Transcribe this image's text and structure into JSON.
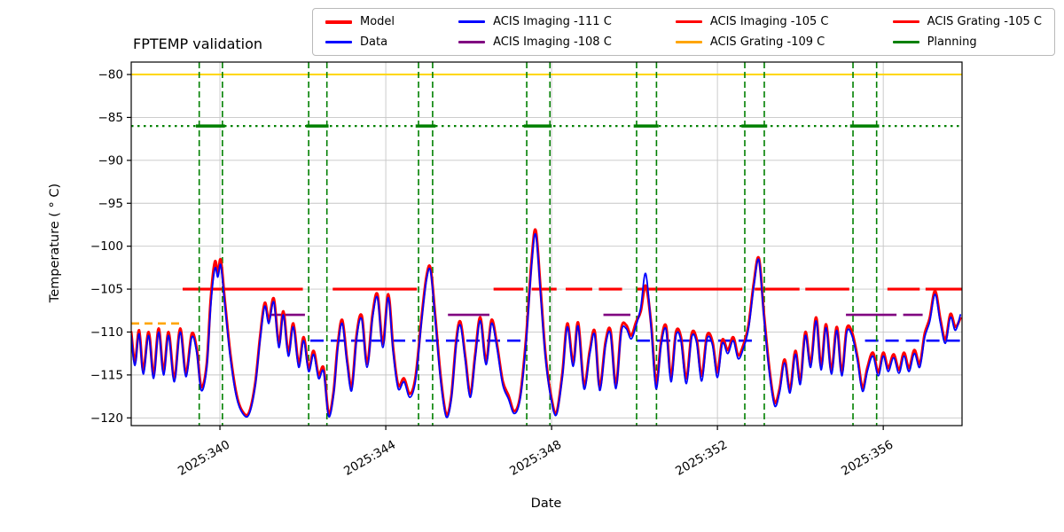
{
  "title": "FPTEMP validation",
  "legend": {
    "items": [
      {
        "label": "Model",
        "color": "#ff0000",
        "line_width": 4
      },
      {
        "label": "Data",
        "color": "#0000ff",
        "line_width": 2.5
      },
      {
        "label": "ACIS Imaging -111 C",
        "color": "#0000ff",
        "line_width": 3
      },
      {
        "label": "ACIS Imaging -108 C",
        "color": "#800080",
        "line_width": 3
      },
      {
        "label": "ACIS Imaging -105 C",
        "color": "#ff0000",
        "line_width": 3
      },
      {
        "label": "ACIS Grating -109 C",
        "color": "#ffa500",
        "line_width": 3
      },
      {
        "label": "ACIS Grating -105 C",
        "color": "#ff0000",
        "line_width": 3
      },
      {
        "label": "Planning",
        "color": "#008000",
        "line_width": 3
      }
    ]
  },
  "chart_data": {
    "type": "line",
    "title": "FPTEMP validation",
    "xlabel": "Date",
    "ylabel": "Temperature ( ° C)",
    "grid": true,
    "legend_position": "top",
    "xlim": [
      337.86,
      357.9
    ],
    "ylim": [
      -120.9,
      -78.55
    ],
    "x_ticks": {
      "values": [
        340,
        344,
        348,
        352,
        356
      ],
      "labels": [
        "2025:340",
        "2025:344",
        "2025:348",
        "2025:352",
        "2025:356"
      ]
    },
    "y_ticks": {
      "values": [
        -80,
        -85,
        -90,
        -95,
        -100,
        -105,
        -110,
        -115,
        -120
      ],
      "labels": [
        "−80",
        "−85",
        "−90",
        "−95",
        "−100",
        "−105",
        "−110",
        "−115",
        "−120"
      ]
    },
    "x": [
      337.86,
      337.95,
      338.05,
      338.15,
      338.28,
      338.4,
      338.52,
      338.64,
      338.76,
      338.9,
      339.04,
      339.18,
      339.32,
      339.44,
      339.55,
      339.68,
      339.78,
      339.88,
      339.95,
      340.02,
      340.12,
      340.25,
      340.4,
      340.55,
      340.7,
      340.85,
      340.97,
      341.08,
      341.18,
      341.3,
      341.42,
      341.53,
      341.65,
      341.77,
      341.9,
      342.02,
      342.14,
      342.26,
      342.38,
      342.5,
      342.62,
      342.74,
      342.84,
      342.95,
      343.07,
      343.18,
      343.3,
      343.42,
      343.55,
      343.68,
      343.8,
      343.93,
      344.06,
      344.18,
      344.3,
      344.44,
      344.58,
      344.72,
      344.86,
      344.98,
      345.08,
      345.2,
      345.33,
      345.46,
      345.58,
      345.7,
      345.8,
      345.92,
      346.04,
      346.16,
      346.28,
      346.42,
      346.55,
      346.68,
      346.82,
      346.96,
      347.1,
      347.24,
      347.38,
      347.52,
      347.62,
      347.74,
      347.86,
      348.0,
      348.12,
      348.26,
      348.38,
      348.52,
      348.64,
      348.78,
      348.92,
      349.04,
      349.16,
      349.3,
      349.42,
      349.55,
      349.68,
      349.8,
      349.92,
      350.04,
      350.15,
      350.27,
      350.4,
      350.52,
      350.64,
      350.76,
      350.88,
      351.0,
      351.12,
      351.25,
      351.38,
      351.5,
      351.62,
      351.75,
      351.88,
      352.0,
      352.12,
      352.25,
      352.38,
      352.5,
      352.62,
      352.75,
      352.88,
      353.0,
      353.12,
      353.25,
      353.38,
      353.5,
      353.62,
      353.75,
      353.88,
      354.0,
      354.12,
      354.25,
      354.38,
      354.5,
      354.62,
      354.75,
      354.88,
      355.0,
      355.12,
      355.25,
      355.38,
      355.5,
      355.62,
      355.75,
      355.88,
      356.0,
      356.12,
      356.25,
      356.38,
      356.5,
      356.62,
      356.75,
      356.88,
      357.0,
      357.12,
      357.25,
      357.38,
      357.5,
      357.62,
      357.74,
      357.86
    ],
    "series": [
      {
        "name": "Model",
        "color": "#ff0000",
        "line_width": 3,
        "values": [
          -110.0,
          -113.5,
          -109.8,
          -114.5,
          -110.0,
          -115.0,
          -109.6,
          -114.6,
          -110.0,
          -115.4,
          -109.6,
          -114.8,
          -110.2,
          -112.0,
          -116.4,
          -113.8,
          -106.0,
          -101.8,
          -103.2,
          -101.6,
          -106.5,
          -112.5,
          -117.3,
          -119.3,
          -119.4,
          -116.0,
          -110.5,
          -106.6,
          -108.6,
          -106.1,
          -111.4,
          -107.6,
          -112.4,
          -109.0,
          -113.7,
          -110.6,
          -114.2,
          -112.2,
          -115.0,
          -114.2,
          -119.5,
          -117.0,
          -111.6,
          -108.6,
          -113.4,
          -116.4,
          -110.2,
          -108.1,
          -113.7,
          -108.0,
          -105.6,
          -111.4,
          -105.6,
          -112.0,
          -116.2,
          -115.4,
          -117.2,
          -115.2,
          -108.5,
          -103.6,
          -102.6,
          -108.5,
          -115.5,
          -119.6,
          -117.5,
          -111.0,
          -108.8,
          -113.0,
          -117.2,
          -112.5,
          -108.3,
          -113.4,
          -108.6,
          -111.4,
          -115.7,
          -117.4,
          -119.2,
          -117.5,
          -111.0,
          -101.5,
          -98.2,
          -105.5,
          -113.0,
          -117.8,
          -119.4,
          -114.8,
          -109.0,
          -113.6,
          -108.9,
          -116.2,
          -112.2,
          -109.9,
          -116.4,
          -111.2,
          -109.8,
          -116.2,
          -109.6,
          -109.2,
          -110.4,
          -108.8,
          -107.6,
          -104.6,
          -109.0,
          -116.0,
          -111.2,
          -109.3,
          -115.2,
          -110.0,
          -110.6,
          -115.4,
          -110.2,
          -110.9,
          -115.1,
          -110.4,
          -111.1,
          -114.7,
          -110.9,
          -112.1,
          -110.6,
          -112.7,
          -111.6,
          -109.2,
          -104.2,
          -101.4,
          -107.8,
          -114.2,
          -118.2,
          -116.6,
          -113.2,
          -116.7,
          -112.2,
          -115.7,
          -110.0,
          -113.7,
          -108.3,
          -114.0,
          -109.1,
          -114.5,
          -109.4,
          -114.7,
          -109.6,
          -110.1,
          -113.0,
          -116.5,
          -114.1,
          -112.4,
          -114.7,
          -112.4,
          -114.2,
          -112.6,
          -114.4,
          -112.4,
          -114.2,
          -112.1,
          -113.7,
          -110.2,
          -108.4,
          -105.2,
          -108.6,
          -110.9,
          -107.9,
          -109.4,
          -108.4
        ]
      },
      {
        "name": "Data",
        "color": "#0000ff",
        "line_width": 1.8,
        "values": [
          -110.4,
          -113.9,
          -110.2,
          -114.9,
          -110.4,
          -115.4,
          -110.0,
          -115.0,
          -110.4,
          -115.8,
          -110.0,
          -115.2,
          -110.6,
          -112.4,
          -116.8,
          -114.2,
          -106.8,
          -102.6,
          -103.6,
          -102.2,
          -106.9,
          -112.9,
          -117.6,
          -119.5,
          -119.6,
          -116.3,
          -110.9,
          -107.0,
          -109.0,
          -106.5,
          -111.8,
          -108.0,
          -112.8,
          -109.4,
          -114.1,
          -111.0,
          -114.6,
          -112.6,
          -115.4,
          -114.6,
          -119.8,
          -117.3,
          -112.0,
          -109.0,
          -113.8,
          -116.8,
          -110.6,
          -108.5,
          -114.1,
          -108.4,
          -106.0,
          -111.8,
          -106.0,
          -112.4,
          -116.6,
          -115.8,
          -117.6,
          -115.6,
          -108.9,
          -104.0,
          -102.9,
          -108.9,
          -115.9,
          -119.9,
          -117.8,
          -111.4,
          -109.2,
          -113.4,
          -117.6,
          -112.9,
          -108.7,
          -113.8,
          -109.0,
          -111.8,
          -116.1,
          -117.8,
          -119.5,
          -117.8,
          -111.5,
          -102.0,
          -98.7,
          -106.0,
          -113.4,
          -118.1,
          -119.6,
          -115.2,
          -109.4,
          -114.0,
          -109.3,
          -116.6,
          -112.6,
          -110.3,
          -116.8,
          -111.6,
          -110.2,
          -116.6,
          -110.0,
          -109.6,
          -110.8,
          -109.2,
          -107.2,
          -103.2,
          -109.4,
          -116.6,
          -111.6,
          -109.7,
          -115.8,
          -110.4,
          -111.0,
          -116.0,
          -110.6,
          -111.3,
          -115.7,
          -110.8,
          -111.5,
          -115.3,
          -111.3,
          -112.5,
          -111.0,
          -113.1,
          -112.0,
          -109.6,
          -104.6,
          -101.6,
          -108.2,
          -114.6,
          -118.6,
          -117.0,
          -113.6,
          -117.1,
          -112.6,
          -116.1,
          -110.4,
          -114.1,
          -108.7,
          -114.4,
          -109.5,
          -114.9,
          -109.8,
          -115.1,
          -110.0,
          -110.5,
          -113.4,
          -116.9,
          -114.5,
          -112.8,
          -115.1,
          -112.8,
          -114.6,
          -113.0,
          -114.8,
          -112.8,
          -114.6,
          -112.5,
          -114.1,
          -110.6,
          -108.8,
          -105.6,
          -109.0,
          -111.3,
          -108.3,
          -109.8,
          -108.0
        ]
      }
    ],
    "limit_lines": [
      {
        "name": "yellow-limit",
        "y": -80,
        "color": "#ffd700",
        "width": 2,
        "dash": "",
        "segments": "full"
      },
      {
        "name": "planning-limit-dotted",
        "y": -86,
        "color": "#008000",
        "width": 2.2,
        "dash": "2.5 4.5",
        "segments": "full"
      },
      {
        "name": "planning-limit-solid",
        "y": -86,
        "color": "#008000",
        "width": 3.5,
        "dash": "",
        "segments": [
          [
            339.42,
            340.12
          ],
          [
            342.08,
            342.62
          ],
          [
            344.72,
            345.2
          ],
          [
            347.33,
            348.0
          ],
          [
            349.98,
            350.58
          ],
          [
            352.58,
            353.2
          ],
          [
            355.2,
            355.9
          ]
        ]
      },
      {
        "name": "acis-imaging-105-limit",
        "y": -105,
        "color": "#ff0000",
        "width": 3.2,
        "dash": "",
        "segments": [
          [
            339.1,
            342.0
          ],
          [
            342.72,
            344.75
          ],
          [
            346.6,
            347.32
          ],
          [
            347.52,
            348.12
          ],
          [
            348.34,
            348.98
          ],
          [
            349.14,
            349.7
          ],
          [
            350.05,
            352.6
          ],
          [
            352.9,
            353.98
          ],
          [
            354.12,
            355.18
          ],
          [
            356.1,
            356.88
          ],
          [
            357.02,
            357.9
          ]
        ]
      },
      {
        "name": "acis-imaging-108-limit",
        "y": -108,
        "color": "#800080",
        "width": 2.6,
        "dash": "",
        "segments": [
          [
            341.22,
            342.05
          ],
          [
            345.5,
            346.5
          ],
          [
            349.25,
            349.9
          ],
          [
            355.1,
            356.32
          ],
          [
            356.48,
            356.95
          ]
        ]
      },
      {
        "name": "acis-imaging-111-limit",
        "y": -111,
        "color": "#0000ff",
        "width": 2.6,
        "dash": "15 8",
        "segments": [
          [
            342.18,
            344.72
          ],
          [
            344.96,
            347.42
          ],
          [
            350.05,
            352.86
          ],
          [
            355.56,
            357.9
          ]
        ]
      },
      {
        "name": "acis-grating-109-limit",
        "y": -109,
        "color": "#ffa500",
        "width": 2.6,
        "dash": "9 6",
        "segments": [
          [
            337.86,
            339.1
          ]
        ]
      }
    ],
    "vertical_lines": {
      "color": "#008000",
      "width": 1.6,
      "dash": "7 4",
      "x": [
        339.5,
        340.06,
        342.14,
        342.58,
        344.79,
        345.13,
        347.4,
        347.96,
        350.05,
        350.53,
        352.66,
        353.13,
        355.27,
        355.84
      ]
    }
  }
}
